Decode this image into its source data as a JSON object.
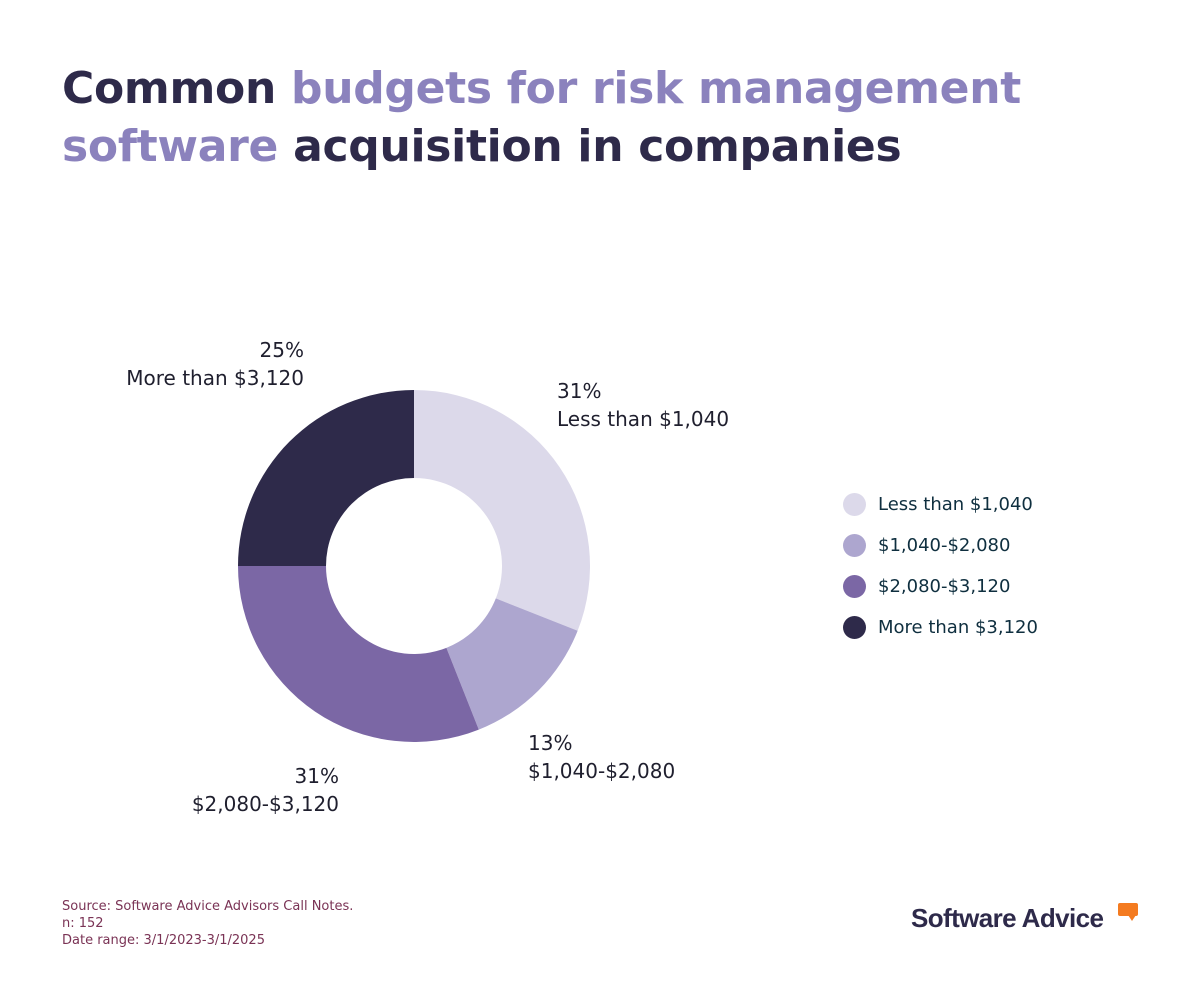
{
  "title": {
    "part1": "Common ",
    "part2": "budgets for risk management software",
    "part3": " acquisition in companies"
  },
  "chart_data": {
    "type": "pie",
    "variant": "donut",
    "categories": [
      "Less than $1,040",
      "$1,040-$2,080",
      "$2,080-$3,120",
      "More than $3,120"
    ],
    "values": [
      31,
      13,
      31,
      25
    ],
    "value_labels": [
      "31%",
      "13%",
      "31%",
      "25%"
    ],
    "colors": [
      "#dcd9ea",
      "#ada6cf",
      "#7b67a5",
      "#2e2a4a"
    ],
    "legend_position": "right"
  },
  "footnote": {
    "source": "Source: Software Advice Advisors Call Notes.",
    "n": "n: 152",
    "date_range": "Date range: 3/1/2023-3/1/2025"
  },
  "brand": {
    "name": "Software Advice",
    "accent_color": "#f47b20"
  }
}
